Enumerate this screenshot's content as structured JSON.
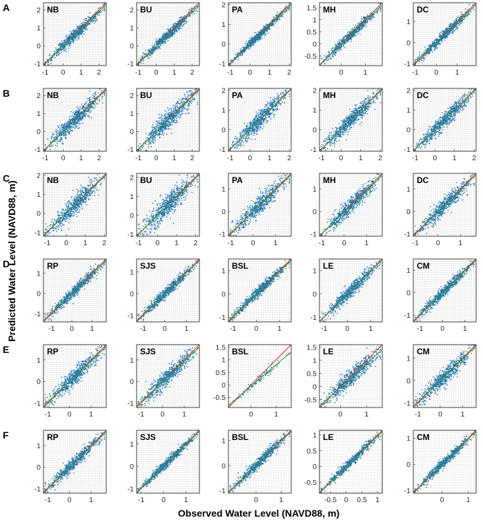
{
  "figure": {
    "xlabel": "Observed Water Level (NAVD88, m)",
    "ylabel": "Predicted Water Level (NAVD88, m)"
  },
  "colors": {
    "points": "#1f77b4",
    "identity_line": "#e8261c",
    "fit_line": "#2ca02c",
    "grid": "#e3e3e3"
  },
  "chart_data": {
    "type": "scatter",
    "grid": true,
    "rows": [
      {
        "label": "A",
        "panels": [
          {
            "station": "NB",
            "xlim": [
              -1.1,
              2.4
            ],
            "xticks": [
              -1,
              0,
              1,
              2
            ],
            "ylim": [
              -1.1,
              2.4
            ],
            "yticks": [
              -1,
              0,
              1,
              2
            ],
            "n_points": 650,
            "spread": 0.16,
            "fit_slope": 0.95,
            "fit_intercept": 0.0
          },
          {
            "station": "BU",
            "xlim": [
              -1.1,
              2.4
            ],
            "xticks": [
              -1,
              0,
              1,
              2
            ],
            "ylim": [
              -1.1,
              2.4
            ],
            "yticks": [
              -1,
              0,
              1,
              2
            ],
            "n_points": 650,
            "spread": 0.14,
            "fit_slope": 0.94,
            "fit_intercept": 0.0
          },
          {
            "station": "PA",
            "xlim": [
              -1.1,
              2.1
            ],
            "xticks": [
              -1,
              0,
              1,
              2
            ],
            "ylim": [
              -1.1,
              2.1
            ],
            "yticks": [
              -1,
              0,
              1,
              2
            ],
            "n_points": 650,
            "spread": 0.11,
            "fit_slope": 0.96,
            "fit_intercept": 0.0
          },
          {
            "station": "MH",
            "xlim": [
              -0.9,
              1.7
            ],
            "xticks": [
              0,
              1
            ],
            "ylim": [
              -0.9,
              1.7
            ],
            "yticks": [
              -0.5,
              0,
              0.5,
              1,
              1.5
            ],
            "n_points": 600,
            "spread": 0.1,
            "fit_slope": 0.95,
            "fit_intercept": -0.02
          },
          {
            "station": "DC",
            "xlim": [
              -1.1,
              1.9
            ],
            "xticks": [
              -1,
              0,
              1
            ],
            "ylim": [
              -1.1,
              1.9
            ],
            "yticks": [
              -1,
              0,
              1
            ],
            "n_points": 650,
            "spread": 0.12,
            "fit_slope": 0.95,
            "fit_intercept": 0.0
          }
        ]
      },
      {
        "label": "B",
        "panels": [
          {
            "station": "NB",
            "xlim": [
              -1.1,
              2.4
            ],
            "xticks": [
              -1,
              0,
              1,
              2
            ],
            "ylim": [
              -1.1,
              2.4
            ],
            "yticks": [
              -1,
              0,
              1,
              2
            ],
            "n_points": 650,
            "spread": 0.24,
            "fit_slope": 0.97,
            "fit_intercept": 0.0
          },
          {
            "station": "BU",
            "xlim": [
              -1.1,
              2.4
            ],
            "xticks": [
              -1,
              0,
              1,
              2
            ],
            "ylim": [
              -1.1,
              2.4
            ],
            "yticks": [
              -1,
              0,
              1,
              2
            ],
            "n_points": 650,
            "spread": 0.28,
            "fit_slope": 0.97,
            "fit_intercept": 0.0
          },
          {
            "station": "PA",
            "xlim": [
              -1.1,
              2.1
            ],
            "xticks": [
              -1,
              0,
              1,
              2
            ],
            "ylim": [
              -1.1,
              2.1
            ],
            "yticks": [
              -1,
              0,
              1,
              2
            ],
            "n_points": 650,
            "spread": 0.22,
            "fit_slope": 0.98,
            "fit_intercept": 0.0
          },
          {
            "station": "MH",
            "xlim": [
              -1.1,
              2.1
            ],
            "xticks": [
              -1,
              0,
              1,
              2
            ],
            "ylim": [
              -1.1,
              2.1
            ],
            "yticks": [
              -1,
              0,
              1,
              2
            ],
            "n_points": 650,
            "spread": 0.2,
            "fit_slope": 0.98,
            "fit_intercept": 0.0
          },
          {
            "station": "DC",
            "xlim": [
              -1.1,
              2.1
            ],
            "xticks": [
              -1,
              0,
              1,
              2
            ],
            "ylim": [
              -1.1,
              2.1
            ],
            "yticks": [
              -1,
              0,
              1,
              2
            ],
            "n_points": 650,
            "spread": 0.2,
            "fit_slope": 0.98,
            "fit_intercept": 0.0
          }
        ]
      },
      {
        "label": "C",
        "panels": [
          {
            "station": "NB",
            "xlim": [
              -1.2,
              2.1
            ],
            "xticks": [
              -1,
              0,
              1,
              2
            ],
            "ylim": [
              -1.2,
              2.1
            ],
            "yticks": [
              -1,
              0,
              1,
              2
            ],
            "n_points": 600,
            "spread": 0.26,
            "fit_slope": 0.97,
            "fit_intercept": 0.0
          },
          {
            "station": "BU",
            "xlim": [
              -1.1,
              2.2
            ],
            "xticks": [
              -1,
              0,
              1,
              2
            ],
            "ylim": [
              -1.1,
              2.2
            ],
            "yticks": [
              -1,
              0,
              1,
              2
            ],
            "n_points": 650,
            "spread": 0.3,
            "fit_slope": 0.97,
            "fit_intercept": 0.0
          },
          {
            "station": "PA",
            "xlim": [
              -1.1,
              1.7
            ],
            "xticks": [
              -1,
              0,
              1
            ],
            "ylim": [
              -1.1,
              1.7
            ],
            "yticks": [
              -1,
              0,
              1
            ],
            "n_points": 600,
            "spread": 0.22,
            "fit_slope": 0.96,
            "fit_intercept": 0.0
          },
          {
            "station": "MH",
            "xlim": [
              -1.1,
              1.7
            ],
            "xticks": [
              -1,
              0,
              1
            ],
            "ylim": [
              -1.1,
              1.7
            ],
            "yticks": [
              -1,
              0,
              1
            ],
            "n_points": 600,
            "spread": 0.17,
            "fit_slope": 0.96,
            "fit_intercept": -0.02
          },
          {
            "station": "DC",
            "xlim": [
              -1.1,
              1.7
            ],
            "xticks": [
              -1,
              0,
              1
            ],
            "ylim": [
              -1.1,
              1.7
            ],
            "yticks": [
              -1,
              0,
              1
            ],
            "n_points": 600,
            "spread": 0.18,
            "fit_slope": 0.96,
            "fit_intercept": 0.0
          }
        ]
      },
      {
        "label": "D",
        "panels": [
          {
            "station": "RP",
            "xlim": [
              -1.4,
              1.7
            ],
            "xticks": [
              -1,
              0,
              1
            ],
            "ylim": [
              -1.4,
              1.7
            ],
            "yticks": [
              -1,
              0,
              1
            ],
            "n_points": 600,
            "spread": 0.13,
            "fit_slope": 0.95,
            "fit_intercept": 0.0
          },
          {
            "station": "SJS",
            "xlim": [
              -1.3,
              1.6
            ],
            "xticks": [
              -1,
              0,
              1
            ],
            "ylim": [
              -1.3,
              1.6
            ],
            "yticks": [
              -1,
              0,
              1
            ],
            "n_points": 600,
            "spread": 0.12,
            "fit_slope": 0.96,
            "fit_intercept": 0.0
          },
          {
            "station": "BSL",
            "xlim": [
              -1.2,
              1.5
            ],
            "xticks": [
              -1,
              0,
              1
            ],
            "ylim": [
              -1.2,
              1.5
            ],
            "yticks": [
              -1,
              0,
              1
            ],
            "n_points": 600,
            "spread": 0.11,
            "fit_slope": 0.96,
            "fit_intercept": 0.0
          },
          {
            "station": "LE",
            "xlim": [
              -1.2,
              1.5
            ],
            "xticks": [
              -1,
              0,
              1
            ],
            "ylim": [
              -1.2,
              1.5
            ],
            "yticks": [
              -1,
              0,
              1
            ],
            "n_points": 600,
            "spread": 0.14,
            "fit_slope": 0.98,
            "fit_intercept": 0.0
          },
          {
            "station": "CM",
            "xlim": [
              -1.3,
              1.5
            ],
            "xticks": [
              -1,
              0,
              1
            ],
            "ylim": [
              -1.3,
              1.5
            ],
            "yticks": [
              -1,
              0,
              1
            ],
            "n_points": 600,
            "spread": 0.12,
            "fit_slope": 0.97,
            "fit_intercept": 0.0
          }
        ]
      },
      {
        "label": "E",
        "panels": [
          {
            "station": "RP",
            "xlim": [
              -1.2,
              1.7
            ],
            "xticks": [
              -1,
              0,
              1
            ],
            "ylim": [
              -1.2,
              1.7
            ],
            "yticks": [
              -1,
              0,
              1
            ],
            "n_points": 600,
            "spread": 0.2,
            "fit_slope": 0.95,
            "fit_intercept": 0.0
          },
          {
            "station": "SJS",
            "xlim": [
              -1.2,
              1.7
            ],
            "xticks": [
              -1,
              0,
              1
            ],
            "ylim": [
              -1.2,
              1.7
            ],
            "yticks": [
              -1,
              0,
              1
            ],
            "n_points": 600,
            "spread": 0.19,
            "fit_slope": 0.94,
            "fit_intercept": 0.0
          },
          {
            "station": "BSL",
            "xlim": [
              -0.9,
              1.6
            ],
            "xticks": [
              0,
              1
            ],
            "ylim": [
              -0.9,
              1.6
            ],
            "yticks": [
              -0.5,
              0,
              0.5,
              1,
              1.5
            ],
            "n_points": 100,
            "spread": 0.08,
            "fit_slope": 0.85,
            "fit_intercept": -0.05
          },
          {
            "station": "LE",
            "xlim": [
              -0.8,
              1.6
            ],
            "xticks": [
              0,
              1
            ],
            "ylim": [
              -0.8,
              1.6
            ],
            "yticks": [
              -0.5,
              0,
              0.5,
              1,
              1.5
            ],
            "n_points": 600,
            "spread": 0.16,
            "fit_slope": 0.9,
            "fit_intercept": -0.03
          },
          {
            "station": "CM",
            "xlim": [
              -1.2,
              1.6
            ],
            "xticks": [
              -1,
              0,
              1
            ],
            "ylim": [
              -1.2,
              1.6
            ],
            "yticks": [
              -1,
              0,
              1
            ],
            "n_points": 600,
            "spread": 0.18,
            "fit_slope": 0.96,
            "fit_intercept": 0.0
          }
        ]
      },
      {
        "label": "F",
        "panels": [
          {
            "station": "RP",
            "xlim": [
              -1.2,
              1.7
            ],
            "xticks": [
              -1,
              0,
              1
            ],
            "ylim": [
              -1.2,
              1.7
            ],
            "yticks": [
              -1,
              0,
              1
            ],
            "n_points": 600,
            "spread": 0.14,
            "fit_slope": 0.96,
            "fit_intercept": 0.0
          },
          {
            "station": "SJS",
            "xlim": [
              -1.2,
              1.6
            ],
            "xticks": [
              -1,
              0,
              1
            ],
            "ylim": [
              -1.2,
              1.6
            ],
            "yticks": [
              -1,
              0,
              1
            ],
            "n_points": 600,
            "spread": 0.1,
            "fit_slope": 0.97,
            "fit_intercept": 0.0
          },
          {
            "station": "BSL",
            "xlim": [
              -1.1,
              1.4
            ],
            "xticks": [
              0,
              1
            ],
            "ylim": [
              -1.1,
              1.4
            ],
            "yticks": [
              -1,
              0,
              1
            ],
            "n_points": 600,
            "spread": 0.1,
            "fit_slope": 0.97,
            "fit_intercept": 0.0
          },
          {
            "station": "LE",
            "xlim": [
              -0.85,
              1.15
            ],
            "xticks": [
              -0.5,
              0,
              0.5,
              1
            ],
            "ylim": [
              -0.85,
              1.15
            ],
            "yticks": [
              -0.5,
              0,
              0.5,
              1
            ],
            "n_points": 600,
            "spread": 0.07,
            "fit_slope": 0.97,
            "fit_intercept": 0.0
          },
          {
            "station": "CM",
            "xlim": [
              -1.1,
              1.3
            ],
            "xticks": [
              0,
              1
            ],
            "ylim": [
              -1.1,
              1.3
            ],
            "yticks": [
              -1,
              0,
              1
            ],
            "n_points": 600,
            "spread": 0.09,
            "fit_slope": 0.97,
            "fit_intercept": 0.0
          }
        ]
      }
    ]
  }
}
